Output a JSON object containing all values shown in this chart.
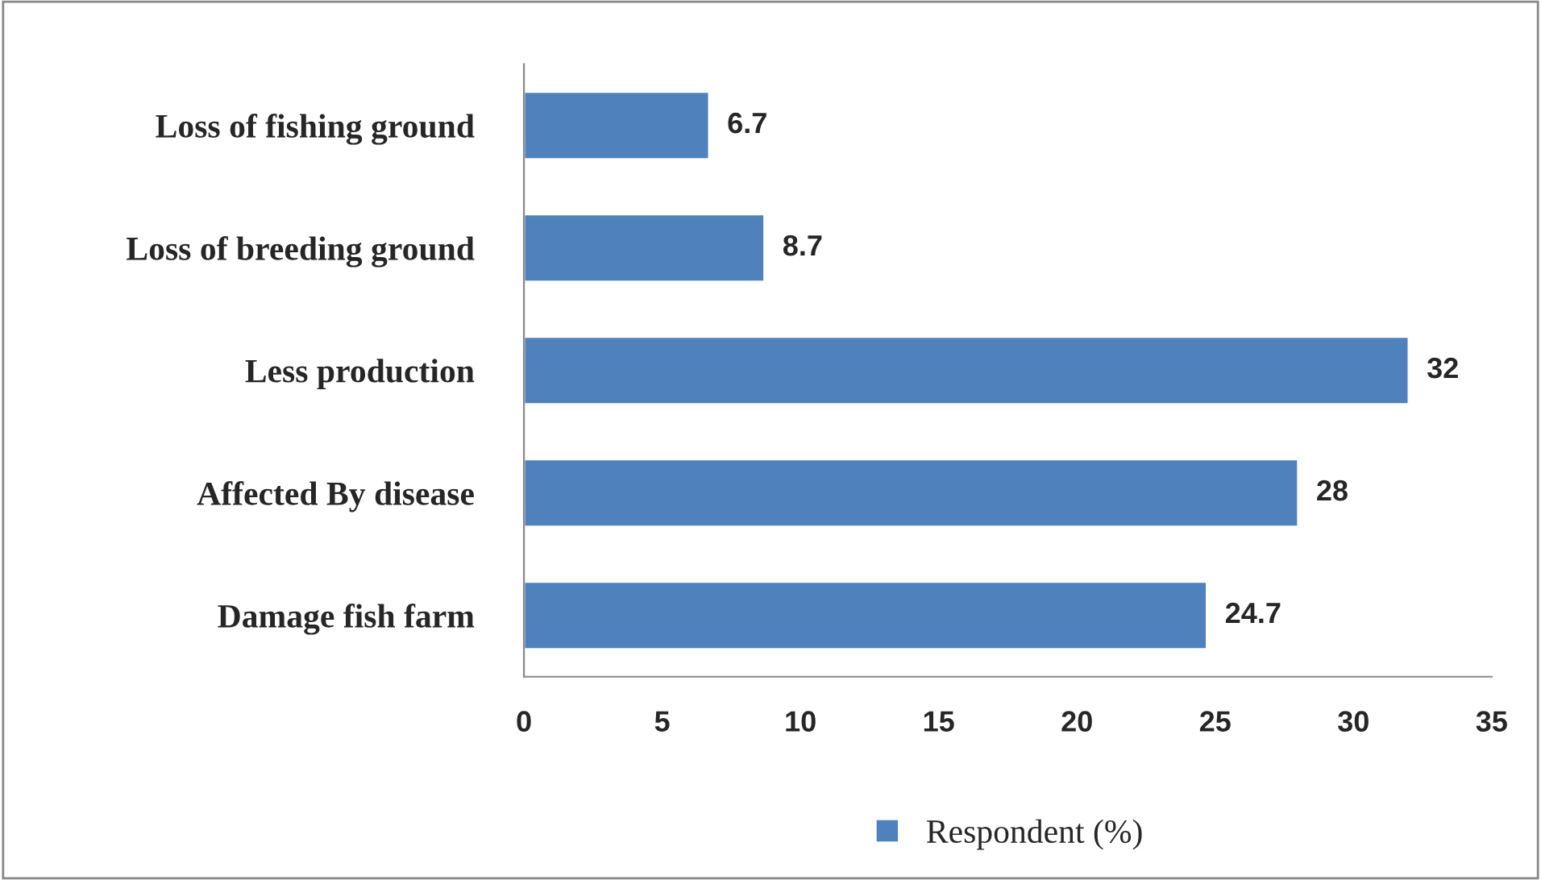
{
  "chart_data": {
    "type": "bar",
    "orientation": "horizontal",
    "categories": [
      "Loss of fishing ground",
      "Loss of breeding ground",
      "Less production",
      "Affected By disease",
      "Damage fish farm"
    ],
    "series": [
      {
        "name": "Respondent (%)",
        "color": "#4f81bd",
        "values": [
          6.7,
          8.7,
          32,
          28,
          24.7
        ]
      }
    ],
    "xlim": [
      0,
      35
    ],
    "xticks": [
      0,
      5,
      10,
      15,
      20,
      25,
      30,
      35
    ],
    "data_labels": true,
    "grid": false,
    "legend": "bottom"
  }
}
